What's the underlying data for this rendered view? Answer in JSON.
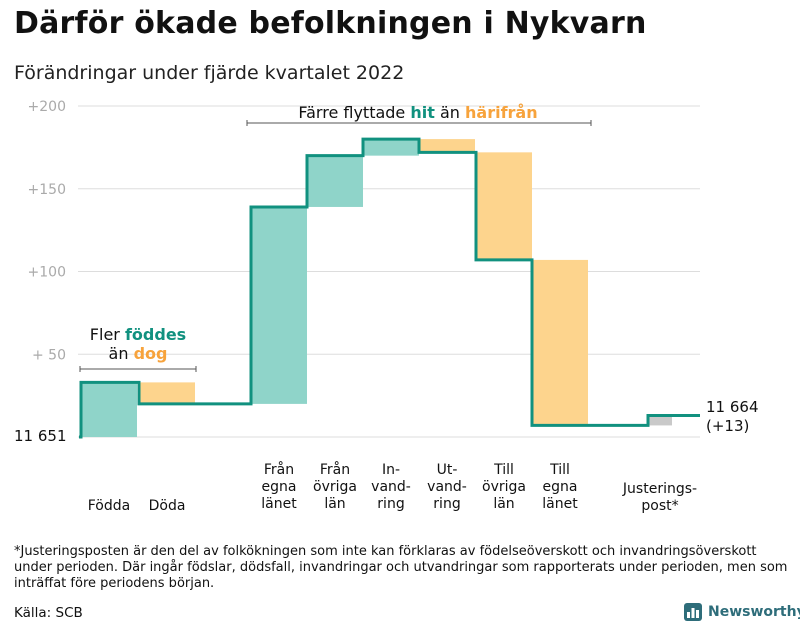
{
  "header": {
    "title": "Därför ökade befolkningen i Nykvarn",
    "subtitle": "Förändringar under fjärde kvartalet 2022"
  },
  "colors": {
    "positive": "#8fd4c9",
    "negative": "#fdd48d",
    "adjustment": "#c9c9c9",
    "line": "#11917f",
    "accent_teal": "#11917f",
    "accent_orange": "#f7a33c",
    "grid": "#dddddd",
    "axis_label": "#aaaaaa"
  },
  "chart_data": {
    "type": "waterfall",
    "base_value": 11651,
    "start_label": "11 651",
    "end_label_line1": "11 664",
    "end_label_line2": "(+13)",
    "y_ticks": [
      {
        "value": 50,
        "label": "+ 50"
      },
      {
        "value": 100,
        "label": "+100"
      },
      {
        "value": 150,
        "label": "+150"
      },
      {
        "value": 200,
        "label": "+200"
      }
    ],
    "ylim": [
      0,
      200
    ],
    "steps": [
      {
        "label": "Födda",
        "delta": 33,
        "kind": "positive"
      },
      {
        "label": "Döda",
        "delta": -13,
        "kind": "negative"
      },
      {
        "label": "Från egna länet",
        "delta": 119,
        "kind": "positive"
      },
      {
        "label": "Från övriga län",
        "delta": 31,
        "kind": "positive"
      },
      {
        "label": "In- vand- ring",
        "delta": 10,
        "kind": "positive"
      },
      {
        "label": "Ut- vand- ring",
        "delta": -8,
        "kind": "negative"
      },
      {
        "label": "Till övriga län",
        "delta": -65,
        "kind": "negative"
      },
      {
        "label": "Till egna länet",
        "delta": -100,
        "kind": "negative"
      },
      {
        "label": "Justerings- post*",
        "delta": 6,
        "kind": "adjustment"
      }
    ],
    "x_label_lines": [
      [
        "Födda"
      ],
      [
        "Döda"
      ],
      [
        "Från",
        "egna",
        "länet"
      ],
      [
        "Från",
        "övriga",
        "län"
      ],
      [
        "In-",
        "vand-",
        "ring"
      ],
      [
        "Ut-",
        "vand-",
        "ring"
      ],
      [
        "Till",
        "övriga",
        "län"
      ],
      [
        "Till",
        "egna",
        "länet"
      ],
      [
        "Justerings-",
        "post*"
      ]
    ],
    "annotations": [
      {
        "prefix": "Fler ",
        "highlight": "föddes",
        "line2_prefix": "än ",
        "line2_highlight": "dog"
      },
      {
        "prefix": "Färre flyttade ",
        "highlight1": "hit",
        "middle": " än ",
        "highlight2": "härifrån"
      }
    ]
  },
  "footer": {
    "footnote": "*Justeringsposten är den del av folkökningen som inte kan förklaras av födelseöverskott och invandringsöverskott under perioden. Där ingår födslar, dödsfall, invandringar och utvandringar som rapporterats under perioden, men som inträffat före periodens början.",
    "source": "Källa: SCB",
    "brand": "Newsworthy",
    "brand_icon": "bar-chart-icon"
  }
}
